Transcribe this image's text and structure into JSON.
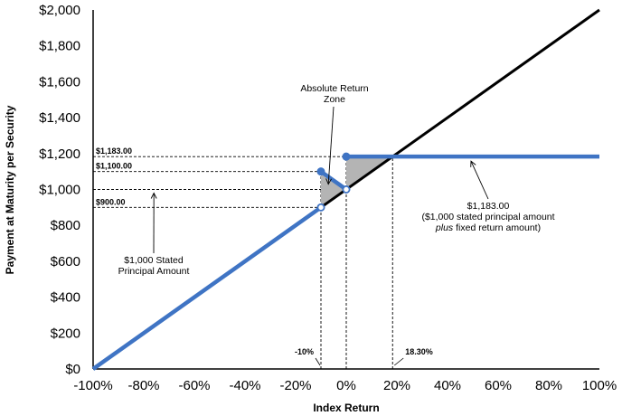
{
  "chart_data": {
    "type": "line",
    "title": "",
    "xlabel": "Index Return",
    "ylabel": "Payment at Maturity per Security",
    "xlim": [
      -100,
      100
    ],
    "ylim": [
      0,
      2000
    ],
    "grid": false,
    "x_ticks": [
      -100,
      -80,
      -60,
      -40,
      -20,
      0,
      20,
      40,
      60,
      80,
      100
    ],
    "x_tick_labels": [
      "-100%",
      "-80%",
      "-60%",
      "-40%",
      "-20%",
      "0%",
      "20%",
      "40%",
      "60%",
      "80%",
      "100%"
    ],
    "y_ticks": [
      0,
      200,
      400,
      600,
      800,
      1000,
      1200,
      1400,
      1600,
      1800,
      2000
    ],
    "y_tick_labels": [
      "$0",
      "$200",
      "$400",
      "$600",
      "$800",
      "$1,000",
      "$1,200",
      "$1,400",
      "$1,600",
      "$1,800",
      "$2,000"
    ],
    "series": [
      {
        "color": "#000000",
        "segments": [
          [
            [
              -100,
              0
            ],
            [
              100,
              2000
            ]
          ]
        ]
      },
      {
        "color": "#3f74c4",
        "segments": [
          [
            [
              -100,
              0
            ],
            [
              -10,
              900
            ]
          ],
          [
            [
              -10,
              1100
            ],
            [
              0,
              1000
            ]
          ],
          [
            [
              0,
              1183
            ],
            [
              100,
              1183
            ]
          ]
        ]
      }
    ],
    "markers": [
      {
        "x": -10,
        "y": 900,
        "filled": false
      },
      {
        "x": -10,
        "y": 1100,
        "filled": true
      },
      {
        "x": 0,
        "y": 1000,
        "filled": false
      },
      {
        "x": 0,
        "y": 1183,
        "filled": true
      }
    ],
    "shaded_regions": [
      [
        [
          -10,
          900
        ],
        [
          -10,
          1100
        ],
        [
          0,
          1000
        ]
      ],
      [
        [
          0,
          1000
        ],
        [
          0,
          1183
        ],
        [
          18.3,
          1183
        ]
      ]
    ],
    "reference_lines": {
      "horizontal": [
        {
          "y": 1183,
          "x_to": 18.3,
          "label": "$1,183.00"
        },
        {
          "y": 1100,
          "x_to": -10,
          "label": "$1,100.00"
        },
        {
          "y": 1000,
          "x_to": 0,
          "label": ""
        },
        {
          "y": 900,
          "x_to": -10,
          "label": "$900.00"
        }
      ],
      "vertical": [
        {
          "x": -10,
          "y_to": 1100,
          "label": "-10%"
        },
        {
          "x": 0,
          "y_to": 1183,
          "label": ""
        },
        {
          "x": 18.3,
          "y_to": 1183,
          "label": "18.30%"
        }
      ]
    },
    "annotations": [
      {
        "lines": [
          "Absolute Return",
          "Zone"
        ],
        "points_to": [
          -6,
          1070
        ]
      },
      {
        "lines": [
          "$1,000 Stated",
          "Principal Amount"
        ],
        "points_to": [
          -76,
          1000
        ]
      },
      {
        "lines": [
          "$1,183.00",
          "($1,000 stated principal amount",
          "plus fixed return amount)"
        ],
        "italic_word": "plus",
        "points_to": [
          55,
          1183
        ]
      }
    ]
  }
}
